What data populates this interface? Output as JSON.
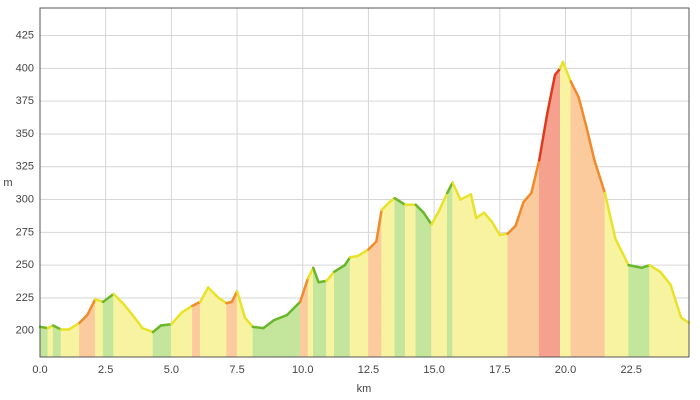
{
  "chart_data": {
    "type": "elevation",
    "ylabel": "m",
    "xlabel": "km",
    "xlim": [
      0,
      24.7
    ],
    "ylim": [
      180,
      446
    ],
    "xticks": [
      {
        "value": 0,
        "label": "0.0"
      },
      {
        "value": 2.5,
        "label": "2.5"
      },
      {
        "value": 5,
        "label": "5.0"
      },
      {
        "value": 7.5,
        "label": "7.5"
      },
      {
        "value": 10,
        "label": "10.0"
      },
      {
        "value": 12.5,
        "label": "12.5"
      },
      {
        "value": 15,
        "label": "15.0"
      },
      {
        "value": 17.5,
        "label": "17.5"
      },
      {
        "value": 20,
        "label": "20.0"
      },
      {
        "value": 22.5,
        "label": "22.5"
      }
    ],
    "yticks": [
      200,
      225,
      250,
      275,
      300,
      325,
      350,
      375,
      400,
      425
    ],
    "grid": true,
    "grade_colors": {
      "down": {
        "line": "#6ab62a",
        "fill": "#c4e69c"
      },
      "flat": {
        "line": "#e8e22a",
        "fill": "#f8f3a0"
      },
      "up": {
        "line": "#f08a2a",
        "fill": "#fbcb9e"
      },
      "steep": {
        "line": "#e03a1e",
        "fill": "#f6a090"
      }
    },
    "series": [
      {
        "x": [
          0,
          0.3,
          0.5,
          0.8,
          1.1,
          1.5,
          1.8,
          2.1,
          2.4,
          2.8,
          3.2,
          3.6,
          3.9,
          4.3,
          4.6,
          5.0,
          5.4,
          5.8,
          6.1,
          6.4,
          6.8,
          7.1,
          7.3,
          7.5,
          7.8,
          8.1,
          8.5,
          8.9,
          9.4,
          9.9,
          10.2,
          10.4,
          10.6,
          10.9,
          11.2,
          11.6,
          11.8,
          12.1,
          12.5,
          12.8,
          13.0,
          13.3,
          13.5,
          13.9,
          14.3,
          14.6,
          14.9,
          15.2,
          15.5,
          15.7,
          16.0,
          16.4,
          16.6,
          16.9,
          17.2,
          17.5,
          17.8,
          18.1,
          18.4,
          18.7,
          19.0,
          19.3,
          19.6,
          19.8,
          19.9,
          20.2,
          20.5,
          20.8,
          21.1,
          21.5,
          21.9,
          22.4,
          22.9,
          23.2,
          23.6,
          24.0,
          24.4,
          24.7
        ],
        "values": [
          203,
          202,
          204,
          201,
          201,
          206,
          212,
          224,
          222,
          228,
          220,
          210,
          202,
          199,
          204,
          205,
          214,
          219,
          222,
          233,
          225,
          221,
          222,
          230,
          210,
          203,
          202,
          208,
          212,
          222,
          240,
          248,
          237,
          238,
          245,
          250,
          256,
          257,
          262,
          268,
          292,
          298,
          301,
          296,
          296,
          290,
          281,
          292,
          305,
          313,
          300,
          304,
          286,
          290,
          283,
          273,
          274,
          280,
          298,
          305,
          330,
          365,
          395,
          400,
          405,
          390,
          378,
          355,
          330,
          305,
          270,
          250,
          248,
          250,
          245,
          235,
          210,
          206
        ],
        "grades": [
          "down",
          "flat",
          "down",
          "flat",
          "flat",
          "up",
          "up",
          "flat",
          "down",
          "flat",
          "flat",
          "flat",
          "flat",
          "down",
          "down",
          "flat",
          "flat",
          "up",
          "flat",
          "flat",
          "flat",
          "up",
          "up",
          "flat",
          "flat",
          "down",
          "down",
          "down",
          "down",
          "up",
          "flat",
          "down",
          "down",
          "flat",
          "down",
          "down",
          "flat",
          "flat",
          "up",
          "up",
          "flat",
          "flat",
          "down",
          "flat",
          "down",
          "down",
          "flat",
          "flat",
          "down",
          "flat",
          "flat",
          "flat",
          "flat",
          "flat",
          "flat",
          "flat",
          "up",
          "up",
          "up",
          "up",
          "steep",
          "steep",
          "steep",
          "flat",
          "flat",
          "up",
          "up",
          "up",
          "up",
          "flat",
          "flat",
          "down",
          "down",
          "flat",
          "flat",
          "flat",
          "flat"
        ]
      }
    ]
  }
}
